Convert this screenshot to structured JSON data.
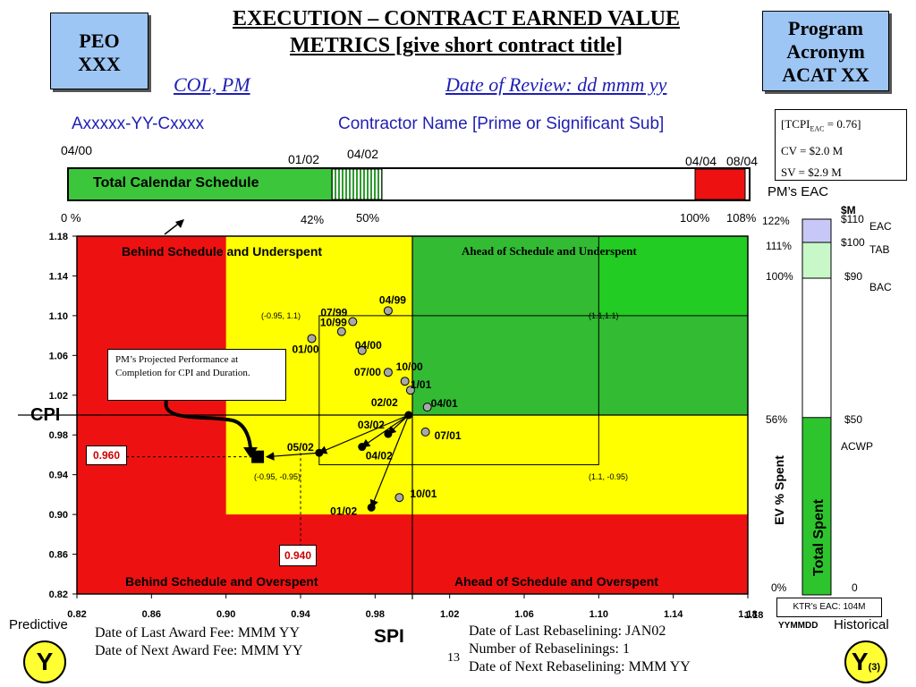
{
  "header": {
    "peo_line1": "PEO",
    "peo_line2": "XXX",
    "title_line1": "EXECUTION – CONTRACT EARNED VALUE",
    "title_line2": "METRICS [give short contract title]",
    "col_pm": "COL, PM",
    "review_date": "Date of Review: dd mmm yy",
    "program_line1": "Program",
    "program_line2": "Acronym",
    "program_line3": "ACAT XX"
  },
  "contract": {
    "number": "Axxxxx-YY-Cxxxx",
    "contractor": "Contractor Name [Prime or Significant Sub]"
  },
  "summary_box": {
    "tcpi_prefix": "[TCPI",
    "tcpi_sub": "EAC",
    "tcpi_suffix": " = 0.76]",
    "cv": "CV = $2.0 M",
    "sv": "SV = $2.9 M"
  },
  "schedule_bar": {
    "label": "Total Calendar Schedule",
    "date_start": "04/00",
    "date_review": "01/02",
    "date_mid": "04/02",
    "date_end": "04/04",
    "date_late": "08/04",
    "pct_start": "0 %",
    "pct_review": "42%",
    "pct_mid": "50%",
    "pct_end": "100%",
    "pct_late": "108%",
    "elapsed_fraction": 0.42,
    "hatched_to_fraction": 0.5,
    "overrun_from_fraction": 1.0,
    "overrun_to_fraction": 1.08,
    "colors": {
      "elapsed": "#3cc63c",
      "overrun": "#ee1111"
    }
  },
  "chart_data": {
    "type": "scatter",
    "xlabel": "SPI",
    "ylabel": "CPI",
    "xlim": [
      0.82,
      1.18
    ],
    "ylim": [
      0.82,
      1.18
    ],
    "x_ticks": [
      "0.82",
      "0.86",
      "0.90",
      "0.94",
      "0.98",
      "1.02",
      "1.06",
      "1.10",
      "1.14",
      "1.18"
    ],
    "y_ticks": [
      "1.18",
      "1.14",
      "1.10",
      "1.06",
      "1.02",
      "0.98",
      "0.94",
      "0.90",
      "0.86",
      "0.82"
    ],
    "quadrants": {
      "top_left": "Behind Schedule and Underspent",
      "top_right": "Ahead of Schedule and Underspent",
      "bottom_left": "Behind Schedule and Overspent",
      "bottom_right": "Ahead of Schedule and Overspent"
    },
    "corner_labels": {
      "top_left": "(-0.95, 1.1)",
      "top_right": "(1.1,1.1)",
      "bottom_left": "(-0.95, -0.95)",
      "bottom_right": "(1.1, -0.95)"
    },
    "historical_points": [
      {
        "label": "04/99",
        "x": 0.987,
        "y": 1.105
      },
      {
        "label": "07/99",
        "x": 0.968,
        "y": 1.094
      },
      {
        "label": "10/99",
        "x": 0.962,
        "y": 1.084
      },
      {
        "label": "04/00",
        "x": 0.973,
        "y": 1.065
      },
      {
        "label": "01/00",
        "x": 0.946,
        "y": 1.077
      },
      {
        "label": "07/00",
        "x": 0.987,
        "y": 1.043
      },
      {
        "label": "10/00",
        "x": 0.996,
        "y": 1.034
      },
      {
        "label": "1/01",
        "x": 0.999,
        "y": 1.025
      },
      {
        "label": "04/01",
        "x": 1.008,
        "y": 1.008
      },
      {
        "label": "07/01",
        "x": 1.007,
        "y": 0.983
      },
      {
        "label": "10/01",
        "x": 0.993,
        "y": 0.917
      }
    ],
    "recent_points": [
      {
        "label": "02/02",
        "x": 0.998,
        "y": 1.0
      },
      {
        "label": "03/02",
        "x": 0.987,
        "y": 0.981
      },
      {
        "label": "04/02",
        "x": 0.973,
        "y": 0.968
      },
      {
        "label": "05/02",
        "x": 0.95,
        "y": 0.962
      },
      {
        "label": "01/02",
        "x": 0.978,
        "y": 0.907
      }
    ],
    "projected_point": {
      "x": 0.917,
      "y": 0.958
    },
    "projected_cpi": "0.960",
    "projected_spi": "0.940",
    "callout": "PM’s Projected Performance at Completion for CPI and Duration.",
    "colors": {
      "red": "#ee1111",
      "yellow": "#ffff00",
      "green": "#33bb33",
      "light_green": "#22cc22"
    }
  },
  "gauge": {
    "title": "PM’s EAC",
    "unit": "$M",
    "pct_labels": [
      "122%",
      "111%",
      "100%",
      "56%",
      "0%"
    ],
    "money_labels": [
      "$110",
      "$100",
      "$90",
      "$50",
      "0"
    ],
    "eac_label": "EAC",
    "tab_label": "TAB",
    "bac_label": "BAC",
    "acwp_label": "ACWP",
    "ev_label": "EV % Spent",
    "total_spent_label": "Total Spent",
    "spent_fraction": 0.56,
    "ktr_eac": "KTR’s EAC: 104M",
    "yymmdd": "YYMMDD",
    "colors": {
      "eac": "#c8c8f8",
      "tab": "#c8f8c8",
      "spent": "#2ec42e"
    }
  },
  "footer": {
    "predictive": "Predictive",
    "historical": "Historical",
    "y_left": "Y",
    "y_right": "Y",
    "y_right_sub": "(3)",
    "award_last": "Date of Last Award Fee:  MMM YY",
    "award_next": "Date of Next Award Fee:  MMM YY",
    "page_number": "13",
    "rebaseline_last": "Date of Last Rebaselining:  JAN02",
    "rebaseline_count": "Number of Rebaselinings:   1",
    "rebaseline_next": "Date of Next Rebaselining:  MMM YY",
    "spi_axis": "SPI",
    "x_axis_end_label": "1.18"
  }
}
